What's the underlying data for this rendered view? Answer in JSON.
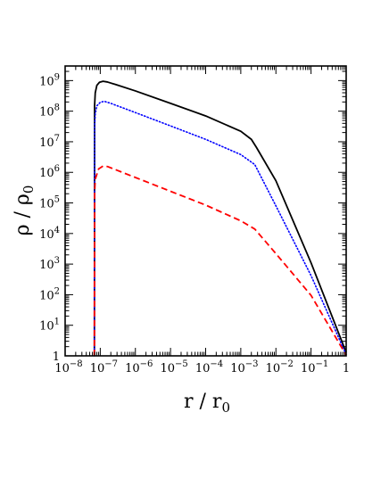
{
  "chart_data": {
    "type": "line",
    "title": "",
    "xlabel": "r / r₀",
    "ylabel": "ρ / ρ₀",
    "xscale": "log",
    "yscale": "log",
    "xlim": [
      1e-08,
      1
    ],
    "ylim": [
      1,
      3000000000.0
    ],
    "grid": false,
    "legend": "none",
    "x_ticks": [
      {
        "exp": "−8",
        "value": 1e-08
      },
      {
        "exp": "−7",
        "value": 1e-07
      },
      {
        "exp": "−6",
        "value": 1e-06
      },
      {
        "exp": "−5",
        "value": 1e-05
      },
      {
        "exp": "−4",
        "value": 0.0001
      },
      {
        "exp": "−3",
        "value": 0.001
      },
      {
        "exp": "−2",
        "value": 0.01
      },
      {
        "exp": "−1",
        "value": 0.1
      },
      {
        "exp": "",
        "value": 1
      }
    ],
    "y_ticks": [
      {
        "exp": "",
        "value": 1
      },
      {
        "exp": "1",
        "value": 10
      },
      {
        "exp": "2",
        "value": 100
      },
      {
        "exp": "3",
        "value": 1000
      },
      {
        "exp": "4",
        "value": 10000
      },
      {
        "exp": "5",
        "value": 100000
      },
      {
        "exp": "6",
        "value": 1000000
      },
      {
        "exp": "7",
        "value": 10000000
      },
      {
        "exp": "8",
        "value": 100000000
      },
      {
        "exp": "9",
        "value": 1000000000
      }
    ],
    "series": [
      {
        "color": "#000000",
        "dash": "solid",
        "points": [
          [
            6.8e-08,
            1
          ],
          [
            6.9e-08,
            150000000.0
          ],
          [
            7.2e-08,
            400000000.0
          ],
          [
            8e-08,
            700000000.0
          ],
          [
            9.5e-08,
            880000000.0
          ],
          [
            1.2e-07,
            950000000.0
          ],
          [
            1.6e-07,
            900000000.0
          ],
          [
            3e-07,
            720000000.0
          ],
          [
            1e-06,
            460000000.0
          ],
          [
            1e-05,
            180000000.0
          ],
          [
            0.0001,
            70000000.0
          ],
          [
            0.001,
            22000000.0
          ],
          [
            0.002,
            12000000.0
          ],
          [
            0.0028,
            6500000.0
          ],
          [
            0.01,
            530000.0
          ],
          [
            0.1,
            1100.0
          ],
          [
            1,
            1.3
          ]
        ]
      },
      {
        "color": "#0000ff",
        "dash": "dotted",
        "points": [
          [
            6.8e-08,
            1
          ],
          [
            6.9e-08,
            30000000.0
          ],
          [
            7.2e-08,
            80000000.0
          ],
          [
            8e-08,
            150000000.0
          ],
          [
            1e-07,
            195000000.0
          ],
          [
            1.3e-07,
            210000000.0
          ],
          [
            2e-07,
            180000000.0
          ],
          [
            1e-06,
            90000000.0
          ],
          [
            1e-05,
            33000000.0
          ],
          [
            0.0001,
            12000000.0
          ],
          [
            0.001,
            3800000.0
          ],
          [
            0.0025,
            1800000.0
          ],
          [
            0.01,
            80000.0
          ],
          [
            0.1,
            420.0
          ],
          [
            1,
            1.1
          ]
        ]
      },
      {
        "color": "#ff0000",
        "dash": "dashed",
        "points": [
          [
            6.8e-08,
            1
          ],
          [
            6.9e-08,
            200000.0
          ],
          [
            7.2e-08,
            600000.0
          ],
          [
            9e-08,
            1300000.0
          ],
          [
            1.2e-07,
            1600000.0
          ],
          [
            1.6e-07,
            1550000.0
          ],
          [
            1e-06,
            680000.0
          ],
          [
            1e-05,
            240000.0
          ],
          [
            0.0001,
            85000.0
          ],
          [
            0.001,
            26000.0
          ],
          [
            0.0025,
            14000.0
          ],
          [
            0.01,
            2200.0
          ],
          [
            0.1,
            95
          ],
          [
            1,
            1.05
          ]
        ]
      }
    ]
  }
}
